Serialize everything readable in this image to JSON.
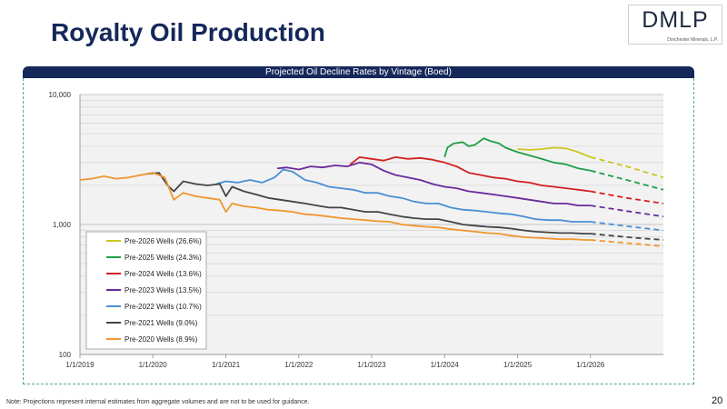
{
  "page": {
    "title": "Royalty Oil Production",
    "logo_text": "DMLP",
    "logo_subtext": "Dorchester Minerals, L.P.",
    "note": "Note: Projections represent internal estimates from aggregate volumes and are not to be used for guidance.",
    "page_number": "20"
  },
  "chart_data": {
    "type": "line",
    "title": "Projected Oil Decline Rates by Vintage (Boed)",
    "xlabel": "",
    "ylabel": "",
    "y_scale": "log",
    "ylim": [
      100,
      10000
    ],
    "yticks": [
      100,
      1000,
      10000
    ],
    "ytick_labels": [
      "100",
      "1,000",
      "10,000"
    ],
    "xlim": [
      "2019-01-01",
      "2027-01-01"
    ],
    "xticks": [
      "2019-01-01",
      "2020-01-01",
      "2021-01-01",
      "2022-01-01",
      "2023-01-01",
      "2024-01-01",
      "2025-01-01",
      "2026-01-01"
    ],
    "xtick_labels": [
      "1/1/2019",
      "1/1/2020",
      "1/1/2021",
      "1/1/2022",
      "1/1/2023",
      "1/1/2024",
      "1/1/2025",
      "1/1/2026"
    ],
    "grid": true,
    "legend_position": "bottom-left",
    "series": [
      {
        "name": "Pre-2026 Wells (26.6%)",
        "color": "#c8c81e",
        "x": [
          "2025-01-01",
          "2025-03-01",
          "2025-05-01",
          "2025-07-01",
          "2025-09-01",
          "2025-11-01",
          "2026-01-01"
        ],
        "values": [
          3800,
          3750,
          3800,
          3900,
          3850,
          3600,
          3300
        ],
        "projection_x": [
          "2026-01-01",
          "2026-07-01",
          "2027-01-01"
        ],
        "projection_values": [
          3300,
          2800,
          2300
        ]
      },
      {
        "name": "Pre-2025 Wells (24.3%)",
        "color": "#1e9e46",
        "x": [
          "2024-01-01",
          "2024-01-15",
          "2024-02-15",
          "2024-04-01",
          "2024-05-01",
          "2024-06-01",
          "2024-07-15",
          "2024-08-15",
          "2024-10-01",
          "2024-11-01",
          "2025-01-01",
          "2025-03-01",
          "2025-05-01",
          "2025-07-01",
          "2025-09-01",
          "2025-11-01",
          "2026-01-01"
        ],
        "values": [
          3300,
          3900,
          4200,
          4300,
          4000,
          4100,
          4600,
          4400,
          4200,
          3900,
          3600,
          3400,
          3200,
          3000,
          2900,
          2700,
          2600
        ],
        "projection_x": [
          "2026-01-01",
          "2026-07-01",
          "2027-01-01"
        ],
        "projection_values": [
          2600,
          2200,
          1850
        ]
      },
      {
        "name": "Pre-2024 Wells (13.6%)",
        "color": "#d42020",
        "x": [
          "2022-09-15",
          "2022-11-01",
          "2023-01-01",
          "2023-03-01",
          "2023-05-01",
          "2023-07-01",
          "2023-09-01",
          "2023-11-01",
          "2024-01-01",
          "2024-03-01",
          "2024-05-01",
          "2024-07-01",
          "2024-09-01",
          "2024-11-01",
          "2025-01-01",
          "2025-03-01",
          "2025-05-01",
          "2025-07-01",
          "2025-09-01",
          "2025-11-01",
          "2026-01-01"
        ],
        "values": [
          2900,
          3300,
          3200,
          3100,
          3300,
          3200,
          3250,
          3150,
          3000,
          2800,
          2500,
          2400,
          2300,
          2250,
          2150,
          2100,
          2000,
          1950,
          1900,
          1850,
          1800
        ],
        "projection_x": [
          "2026-01-01",
          "2026-07-01",
          "2027-01-01"
        ],
        "projection_values": [
          1800,
          1600,
          1450
        ]
      },
      {
        "name": "Pre-2023 Wells (13.5%)",
        "color": "#6a2a9a",
        "x": [
          "2021-09-15",
          "2021-11-01",
          "2022-01-01",
          "2022-03-01",
          "2022-05-01",
          "2022-07-01",
          "2022-09-01",
          "2022-11-01",
          "2023-01-01",
          "2023-03-01",
          "2023-05-01",
          "2023-07-01",
          "2023-09-01",
          "2023-11-01",
          "2024-01-01",
          "2024-03-01",
          "2024-05-01",
          "2024-07-01",
          "2024-09-01",
          "2024-11-01",
          "2025-01-01",
          "2025-03-01",
          "2025-05-01",
          "2025-07-01",
          "2025-09-01",
          "2025-11-01",
          "2026-01-01"
        ],
        "values": [
          2700,
          2750,
          2650,
          2800,
          2750,
          2850,
          2800,
          3000,
          2900,
          2600,
          2400,
          2300,
          2200,
          2050,
          1950,
          1900,
          1800,
          1750,
          1700,
          1650,
          1600,
          1550,
          1500,
          1450,
          1450,
          1400,
          1400
        ],
        "projection_x": [
          "2026-01-01",
          "2026-07-01",
          "2027-01-01"
        ],
        "projection_values": [
          1400,
          1270,
          1150
        ]
      },
      {
        "name": "Pre-2022 Wells (10.7%)",
        "color": "#4a8fd4",
        "x": [
          "2020-11-15",
          "2021-01-01",
          "2021-03-01",
          "2021-05-01",
          "2021-07-01",
          "2021-09-01",
          "2021-10-15",
          "2021-12-01",
          "2022-02-01",
          "2022-04-01",
          "2022-06-01",
          "2022-08-01",
          "2022-10-01",
          "2022-12-01",
          "2023-02-01",
          "2023-04-01",
          "2023-06-01",
          "2023-08-01",
          "2023-10-01",
          "2023-12-01",
          "2024-02-01",
          "2024-04-01",
          "2024-06-01",
          "2024-08-01",
          "2024-10-01",
          "2024-12-01",
          "2025-02-01",
          "2025-04-01",
          "2025-06-01",
          "2025-08-01",
          "2025-10-01",
          "2025-12-01",
          "2026-01-01"
        ],
        "values": [
          2050,
          2150,
          2100,
          2200,
          2100,
          2300,
          2650,
          2550,
          2200,
          2100,
          1950,
          1900,
          1850,
          1750,
          1750,
          1650,
          1600,
          1500,
          1450,
          1450,
          1350,
          1300,
          1280,
          1250,
          1220,
          1200,
          1150,
          1100,
          1080,
          1080,
          1050,
          1050,
          1050
        ],
        "projection_x": [
          "2026-01-01",
          "2026-07-01",
          "2027-01-01"
        ],
        "projection_values": [
          1050,
          970,
          900
        ]
      },
      {
        "name": "Pre-2021 Wells (9.0%)",
        "color": "#444444",
        "x": [
          "2019-12-01",
          "2020-02-01",
          "2020-03-15",
          "2020-04-15",
          "2020-06-01",
          "2020-08-01",
          "2020-10-01",
          "2020-12-01",
          "2021-01-01",
          "2021-02-01",
          "2021-04-01",
          "2021-06-01",
          "2021-08-01",
          "2021-10-01",
          "2021-12-01",
          "2022-02-01",
          "2022-04-01",
          "2022-06-01",
          "2022-08-01",
          "2022-10-01",
          "2022-12-01",
          "2023-02-01",
          "2023-04-01",
          "2023-06-01",
          "2023-08-01",
          "2023-10-01",
          "2023-12-01",
          "2024-02-01",
          "2024-04-01",
          "2024-06-01",
          "2024-08-01",
          "2024-10-01",
          "2024-12-01",
          "2025-02-01",
          "2025-04-01",
          "2025-06-01",
          "2025-08-01",
          "2025-10-01",
          "2025-12-01",
          "2026-01-01"
        ],
        "values": [
          2450,
          2500,
          2000,
          1800,
          2150,
          2050,
          2000,
          2050,
          1650,
          1950,
          1800,
          1700,
          1600,
          1550,
          1500,
          1450,
          1400,
          1350,
          1350,
          1300,
          1250,
          1250,
          1200,
          1150,
          1120,
          1100,
          1100,
          1050,
          1000,
          980,
          960,
          950,
          930,
          900,
          880,
          870,
          860,
          860,
          850,
          850
        ],
        "projection_x": [
          "2026-01-01",
          "2026-07-01",
          "2027-01-01"
        ],
        "projection_values": [
          850,
          800,
          760
        ]
      },
      {
        "name": "Pre-2020 Wells (8.9%)",
        "color": "#f0962e",
        "x": [
          "2019-01-01",
          "2019-03-01",
          "2019-05-01",
          "2019-07-01",
          "2019-09-01",
          "2019-11-01",
          "2020-01-01",
          "2020-03-01",
          "2020-04-15",
          "2020-06-01",
          "2020-08-01",
          "2020-10-01",
          "2020-12-01",
          "2021-01-01",
          "2021-02-01",
          "2021-04-01",
          "2021-06-01",
          "2021-08-01",
          "2021-10-01",
          "2021-12-01",
          "2022-02-01",
          "2022-04-01",
          "2022-06-01",
          "2022-08-01",
          "2022-10-01",
          "2022-12-01",
          "2023-02-01",
          "2023-04-01",
          "2023-06-01",
          "2023-08-01",
          "2023-10-01",
          "2023-12-01",
          "2024-02-01",
          "2024-04-01",
          "2024-06-01",
          "2024-08-01",
          "2024-10-01",
          "2024-12-01",
          "2025-02-01",
          "2025-04-01",
          "2025-06-01",
          "2025-08-01",
          "2025-10-01",
          "2025-12-01",
          "2026-01-01"
        ],
        "values": [
          2200,
          2250,
          2350,
          2250,
          2300,
          2400,
          2500,
          2300,
          1550,
          1750,
          1650,
          1600,
          1550,
          1250,
          1450,
          1380,
          1350,
          1300,
          1280,
          1250,
          1200,
          1180,
          1150,
          1120,
          1100,
          1080,
          1060,
          1050,
          1000,
          980,
          960,
          950,
          920,
          900,
          880,
          860,
          850,
          820,
          800,
          790,
          780,
          770,
          770,
          760,
          760
        ],
        "projection_x": [
          "2026-01-01",
          "2026-07-01",
          "2027-01-01"
        ],
        "projection_values": [
          760,
          720,
          680
        ]
      }
    ]
  }
}
